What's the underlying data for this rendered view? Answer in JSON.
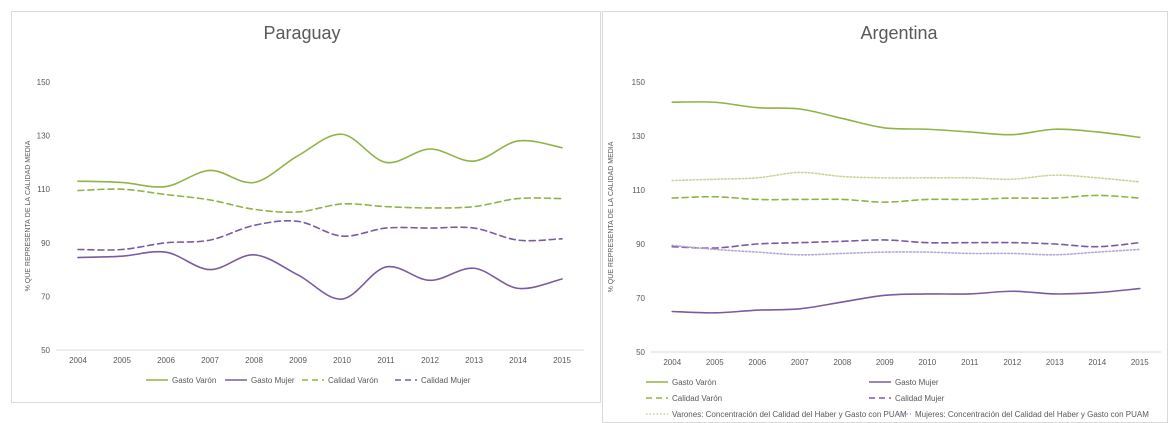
{
  "chart_data": [
    {
      "type": "line",
      "title": "Paraguay",
      "xlabel": "",
      "ylabel": "% QUE REPRESENTA DE LA CALIDAD MEDIA",
      "ylim": [
        50,
        150
      ],
      "yticks": [
        "50",
        "70",
        "90",
        "110",
        "130",
        "150"
      ],
      "categories": [
        "2004",
        "2005",
        "2006",
        "2007",
        "2008",
        "2009",
        "2010",
        "2011",
        "2012",
        "2013",
        "2014",
        "2015"
      ],
      "grid": false,
      "legend_position": "bottom",
      "series": [
        {
          "name": "Gasto Varón",
          "color": "#8fb346",
          "style": "solid",
          "values": [
            113,
            112.5,
            111,
            117,
            112.5,
            122.5,
            130.5,
            120,
            125,
            120.5,
            128,
            125.5
          ]
        },
        {
          "name": "Gasto Mujer",
          "color": "#7b5ba0",
          "style": "solid",
          "values": [
            84.5,
            85,
            86.5,
            80,
            85.5,
            78,
            69,
            81,
            76,
            80.5,
            73,
            76.5
          ]
        },
        {
          "name": "Calidad Varón",
          "color": "#8fb346",
          "style": "dashed",
          "values": [
            109.5,
            110,
            108,
            106,
            102.5,
            101.5,
            104.5,
            103.5,
            103,
            103.5,
            106.5,
            106.5
          ]
        },
        {
          "name": "Calidad Mujer",
          "color": "#7b5ba0",
          "style": "dashed",
          "values": [
            87.5,
            87.5,
            90,
            91,
            96.5,
            98,
            92.5,
            95.5,
            95.5,
            95.5,
            91,
            91.5
          ]
        }
      ]
    },
    {
      "type": "line",
      "title": "Argentina",
      "xlabel": "",
      "ylabel": "% QUE REPRESENTA DE LA CALIDAD MEDIA",
      "ylim": [
        50,
        150
      ],
      "yticks": [
        "50",
        "70",
        "90",
        "110",
        "130",
        "150"
      ],
      "categories": [
        "2004",
        "2005",
        "2006",
        "2007",
        "2008",
        "2009",
        "2010",
        "2011",
        "2012",
        "2013",
        "2014",
        "2015"
      ],
      "grid": false,
      "legend_position": "bottom",
      "series": [
        {
          "name": "Gasto Varón",
          "color": "#8fb346",
          "style": "solid",
          "values": [
            142.5,
            142.5,
            140.5,
            140,
            136.5,
            133,
            132.5,
            131.5,
            130.5,
            132.5,
            131.5,
            129.5
          ]
        },
        {
          "name": "Gasto Mujer",
          "color": "#7b5ba0",
          "style": "solid",
          "values": [
            65,
            64.5,
            65.5,
            66,
            68.5,
            71,
            71.5,
            71.5,
            72.5,
            71.5,
            72,
            73.5
          ]
        },
        {
          "name": "Calidad Varón",
          "color": "#8fb346",
          "style": "dashed",
          "values": [
            107,
            107.5,
            106.5,
            106.5,
            106.5,
            105.5,
            106.5,
            106.5,
            107,
            107,
            108,
            107
          ]
        },
        {
          "name": "Calidad Mujer",
          "color": "#7b5ba0",
          "style": "dashed",
          "values": [
            89,
            88.5,
            90,
            90.5,
            91,
            91.5,
            90.5,
            90.5,
            90.5,
            90,
            89,
            90.5
          ]
        },
        {
          "name": "Varones: Concentración del Calidad del Haber y Gasto con PUAM",
          "color": "#c4d79b",
          "style": "dotted",
          "values": [
            113.5,
            114,
            114.5,
            116.5,
            115,
            114.5,
            114.5,
            114.5,
            114,
            115.5,
            114.5,
            113
          ]
        },
        {
          "name": "Mujeres: Concentración del Calidad del Haber y Gasto con PUAM",
          "color": "#b4a7d6",
          "style": "dotted",
          "values": [
            89.5,
            88,
            87,
            86,
            86.5,
            87,
            87,
            86.5,
            86.5,
            86,
            87,
            88
          ]
        }
      ]
    }
  ]
}
